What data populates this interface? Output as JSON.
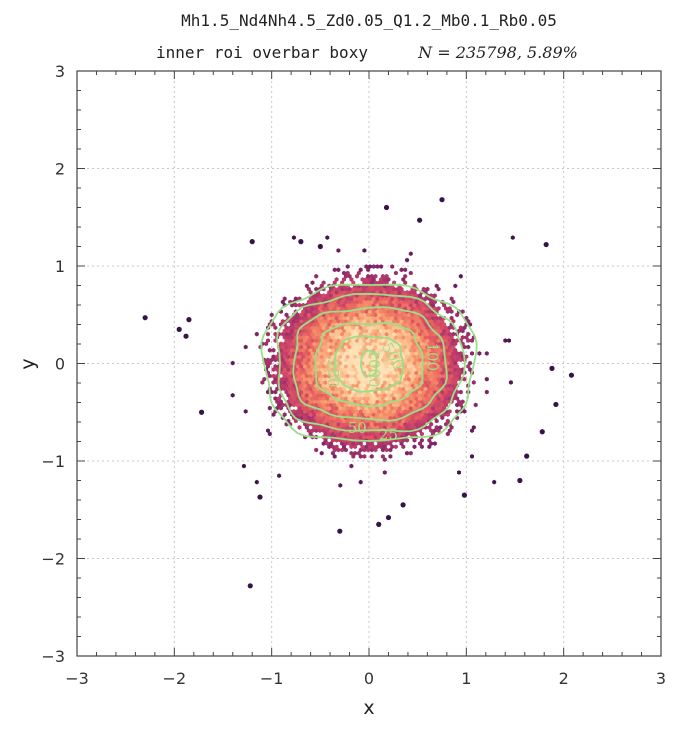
{
  "chart_data": {
    "type": "hexbin-density",
    "title": "Mh1.5_Nd4Nh4.5_Zd0.05_Q1.2_Mb0.1_Rb0.05",
    "subtitle_prefix": "inner roi overbar boxy",
    "subtitle_stats": "N = 235798,    5.89%",
    "xlabel": "x",
    "ylabel": "y",
    "xlim": [
      -3,
      3
    ],
    "ylim": [
      -3,
      3
    ],
    "xticks": [
      -3,
      -2,
      -1,
      0,
      1,
      2,
      3
    ],
    "yticks": [
      -3,
      -2,
      -1,
      0,
      1,
      2,
      3
    ],
    "grid": true,
    "density_center": [
      0.0,
      0.0
    ],
    "density_sigma": [
      0.45,
      0.4
    ],
    "colormap": [
      "#2d1141",
      "#5c1a5f",
      "#8c2a69",
      "#c33d6a",
      "#e8625f",
      "#f6936a",
      "#fbbf8c",
      "#fde2b8"
    ],
    "contour_color": "#98e088",
    "contours": [
      {
        "level": "25",
        "half_width": 1.08,
        "half_height": 0.8,
        "label_pos": [
          0.2,
          -0.73
        ]
      },
      {
        "level": "50",
        "half_width": 0.95,
        "half_height": 0.7,
        "label_pos": [
          -0.12,
          -0.66
        ]
      },
      {
        "level": "100",
        "half_width": 0.78,
        "half_height": 0.57,
        "label_pos": [
          0.6,
          0.12
        ]
      },
      {
        "level": "250",
        "half_width": 0.55,
        "half_height": 0.42,
        "label_pos": [
          -0.42,
          -0.05
        ]
      },
      {
        "level": "500",
        "half_width": 0.35,
        "half_height": 0.28,
        "label_pos": [
          0.2,
          0.1
        ]
      },
      {
        "level": "1000",
        "half_width": 0.08,
        "half_height": 0.13,
        "label_pos": [
          0.0,
          0.0
        ]
      }
    ],
    "outliers": [
      [
        -2.3,
        0.47
      ],
      [
        -1.95,
        0.35
      ],
      [
        -1.88,
        0.28
      ],
      [
        -1.85,
        0.45
      ],
      [
        -1.72,
        -0.5
      ],
      [
        -1.22,
        -2.28
      ],
      [
        -1.12,
        -1.37
      ],
      [
        -1.2,
        1.25
      ],
      [
        -0.7,
        1.25
      ],
      [
        -0.5,
        1.2
      ],
      [
        0.18,
        1.6
      ],
      [
        0.52,
        1.47
      ],
      [
        0.75,
        1.68
      ],
      [
        1.82,
        1.22
      ],
      [
        1.88,
        -0.05
      ],
      [
        2.08,
        -0.12
      ],
      [
        1.92,
        -0.42
      ],
      [
        1.78,
        -0.7
      ],
      [
        1.55,
        -1.2
      ],
      [
        1.62,
        -0.95
      ],
      [
        0.1,
        -1.65
      ],
      [
        0.2,
        -1.58
      ],
      [
        -0.3,
        -1.72
      ],
      [
        0.98,
        -1.35
      ],
      [
        0.35,
        -1.45
      ]
    ]
  }
}
